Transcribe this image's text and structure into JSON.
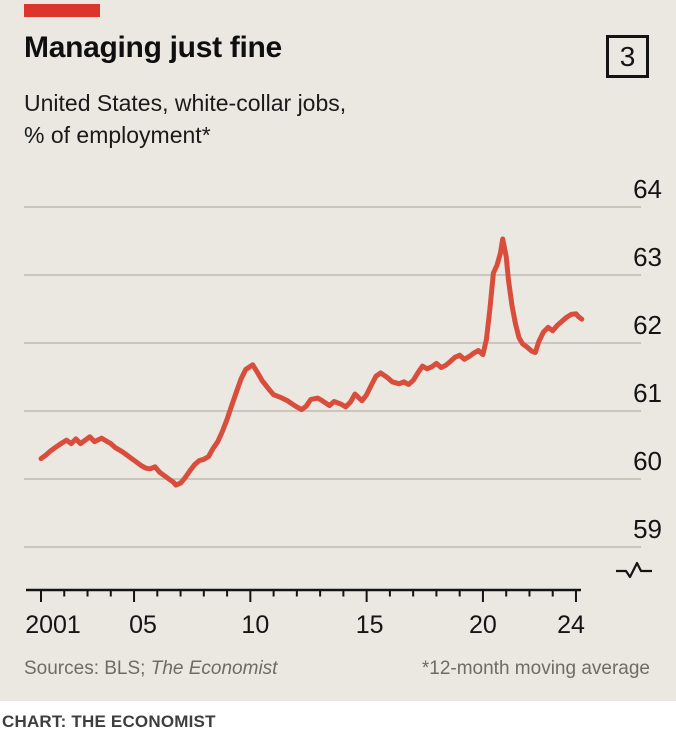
{
  "header": {
    "brand_color": "#dc352b",
    "title": "Managing just fine",
    "figure_number": "3",
    "subtitle_lines": [
      "United States, white-collar jobs,",
      "% of employment*"
    ]
  },
  "footer": {
    "sources_prefix": "Sources: BLS; ",
    "sources_italic": "The Economist",
    "footnote": "*12-month moving average",
    "credit": "CHART: THE ECONOMIST"
  },
  "chart_data": {
    "type": "line",
    "title": "Managing just fine",
    "subtitle": "United States, white-collar jobs, % of employment (12-month moving average)",
    "series_name": "White-collar jobs, % of employment",
    "xlabel": "",
    "ylabel": "% of employment",
    "xlim": [
      2001,
      2024.4
    ],
    "ylim": [
      58.7,
      64.3
    ],
    "grid": true,
    "axis_break": true,
    "line_color": "#d94d3c",
    "grid_color": "#b5b2aa",
    "y_ticks": [
      59,
      60,
      61,
      62,
      63,
      64
    ],
    "x_tick_years_minor": [
      2002,
      2003,
      2004,
      2006,
      2007,
      2008,
      2009,
      2011,
      2012,
      2013,
      2014,
      2016,
      2017,
      2018,
      2019,
      2021,
      2022,
      2023
    ],
    "x_tick_labels": [
      {
        "year": 2001,
        "label": "2001"
      },
      {
        "year": 2005,
        "label": "05"
      },
      {
        "year": 2010,
        "label": "10"
      },
      {
        "year": 2015,
        "label": "15"
      },
      {
        "year": 2020,
        "label": "20"
      },
      {
        "year": 2024,
        "label": "24"
      }
    ],
    "points": [
      [
        2001.0,
        60.3
      ],
      [
        2001.2,
        60.35
      ],
      [
        2001.4,
        60.41
      ],
      [
        2001.6,
        60.46
      ],
      [
        2001.9,
        60.53
      ],
      [
        2002.1,
        60.57
      ],
      [
        2002.3,
        60.52
      ],
      [
        2002.5,
        60.59
      ],
      [
        2002.7,
        60.52
      ],
      [
        2002.9,
        60.57
      ],
      [
        2003.1,
        60.62
      ],
      [
        2003.3,
        60.55
      ],
      [
        2003.6,
        60.6
      ],
      [
        2003.8,
        60.56
      ],
      [
        2004.0,
        60.52
      ],
      [
        2004.2,
        60.46
      ],
      [
        2004.5,
        60.4
      ],
      [
        2004.7,
        60.35
      ],
      [
        2004.9,
        60.3
      ],
      [
        2005.1,
        60.25
      ],
      [
        2005.3,
        60.2
      ],
      [
        2005.5,
        60.16
      ],
      [
        2005.7,
        60.15
      ],
      [
        2005.9,
        60.18
      ],
      [
        2006.1,
        60.1
      ],
      [
        2006.3,
        60.05
      ],
      [
        2006.5,
        60.0
      ],
      [
        2006.7,
        59.95
      ],
      [
        2006.8,
        59.91
      ],
      [
        2007.0,
        59.94
      ],
      [
        2007.2,
        60.02
      ],
      [
        2007.4,
        60.12
      ],
      [
        2007.6,
        60.21
      ],
      [
        2007.8,
        60.27
      ],
      [
        2008.0,
        60.29
      ],
      [
        2008.2,
        60.33
      ],
      [
        2008.4,
        60.45
      ],
      [
        2008.6,
        60.55
      ],
      [
        2008.8,
        60.7
      ],
      [
        2009.0,
        60.88
      ],
      [
        2009.2,
        61.08
      ],
      [
        2009.4,
        61.28
      ],
      [
        2009.6,
        61.47
      ],
      [
        2009.8,
        61.61
      ],
      [
        2010.1,
        61.68
      ],
      [
        2010.3,
        61.57
      ],
      [
        2010.5,
        61.45
      ],
      [
        2010.8,
        61.32
      ],
      [
        2011.0,
        61.24
      ],
      [
        2011.3,
        61.2
      ],
      [
        2011.6,
        61.15
      ],
      [
        2011.9,
        61.08
      ],
      [
        2012.2,
        61.02
      ],
      [
        2012.4,
        61.07
      ],
      [
        2012.6,
        61.17
      ],
      [
        2012.9,
        61.19
      ],
      [
        2013.1,
        61.15
      ],
      [
        2013.4,
        61.08
      ],
      [
        2013.6,
        61.14
      ],
      [
        2013.9,
        61.1
      ],
      [
        2014.1,
        61.06
      ],
      [
        2014.3,
        61.13
      ],
      [
        2014.5,
        61.25
      ],
      [
        2014.8,
        61.15
      ],
      [
        2015.0,
        61.24
      ],
      [
        2015.2,
        61.38
      ],
      [
        2015.4,
        61.51
      ],
      [
        2015.6,
        61.56
      ],
      [
        2015.9,
        61.49
      ],
      [
        2016.1,
        61.43
      ],
      [
        2016.4,
        61.4
      ],
      [
        2016.6,
        61.43
      ],
      [
        2016.8,
        61.39
      ],
      [
        2017.0,
        61.45
      ],
      [
        2017.2,
        61.56
      ],
      [
        2017.4,
        61.66
      ],
      [
        2017.6,
        61.62
      ],
      [
        2017.8,
        61.65
      ],
      [
        2018.0,
        61.7
      ],
      [
        2018.2,
        61.64
      ],
      [
        2018.4,
        61.67
      ],
      [
        2018.6,
        61.73
      ],
      [
        2018.8,
        61.79
      ],
      [
        2019.0,
        61.82
      ],
      [
        2019.2,
        61.76
      ],
      [
        2019.4,
        61.8
      ],
      [
        2019.6,
        61.85
      ],
      [
        2019.8,
        61.89
      ],
      [
        2020.0,
        61.83
      ],
      [
        2020.15,
        62.05
      ],
      [
        2020.3,
        62.5
      ],
      [
        2020.45,
        63.03
      ],
      [
        2020.6,
        63.14
      ],
      [
        2020.75,
        63.32
      ],
      [
        2020.85,
        63.53
      ],
      [
        2021.0,
        63.27
      ],
      [
        2021.1,
        62.92
      ],
      [
        2021.25,
        62.55
      ],
      [
        2021.4,
        62.28
      ],
      [
        2021.55,
        62.08
      ],
      [
        2021.7,
        61.99
      ],
      [
        2021.9,
        61.94
      ],
      [
        2022.1,
        61.88
      ],
      [
        2022.25,
        61.86
      ],
      [
        2022.4,
        62.02
      ],
      [
        2022.6,
        62.16
      ],
      [
        2022.8,
        62.23
      ],
      [
        2023.0,
        62.18
      ],
      [
        2023.2,
        62.26
      ],
      [
        2023.4,
        62.32
      ],
      [
        2023.6,
        62.38
      ],
      [
        2023.8,
        62.42
      ],
      [
        2024.0,
        62.43
      ],
      [
        2024.1,
        62.39
      ],
      [
        2024.25,
        62.35
      ]
    ]
  }
}
